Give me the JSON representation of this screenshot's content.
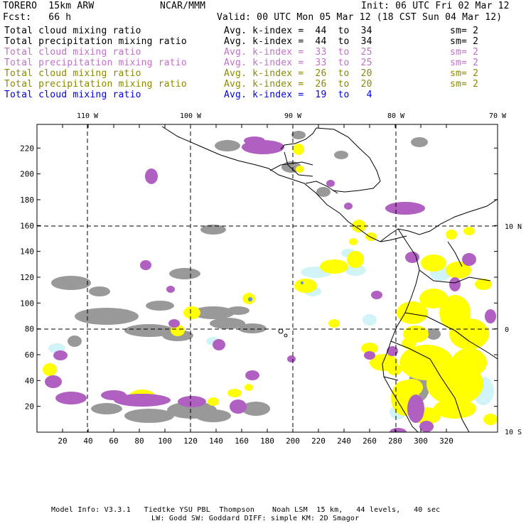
{
  "header": {
    "model": "TORERO  15km ARW",
    "org": "NCAR/MMM",
    "init": "Init: 06 UTC Fri 02 Mar 12",
    "fcst": "Fcst:   66 h",
    "valid": "Valid: 00 UTC Mon 05 Mar 12 (18 CST Sun 04 Mar 12)"
  },
  "legend": [
    {
      "field": "Total cloud mixing ratio",
      "kindex": "Avg. k-index =  44  to  34",
      "sm": "sm= 2",
      "color": "#000000"
    },
    {
      "field": "Total precipitation mixing ratio",
      "kindex": "Avg. k-index =  44  to  34",
      "sm": "sm= 2",
      "color": "#000000"
    },
    {
      "field": "Total cloud mixing ratio",
      "kindex": "Avg. k-index =  33  to  25",
      "sm": "sm= 2",
      "color": "#c070c8"
    },
    {
      "field": "Total precipitation mixing ratio",
      "kindex": "Avg. k-index =  33  to  25",
      "sm": "sm= 2",
      "color": "#c070c8"
    },
    {
      "field": "Total cloud mixing ratio",
      "kindex": "Avg. k-index =  26  to  20",
      "sm": "sm= 2",
      "color": "#8a8a00"
    },
    {
      "field": "Total precipitation mixing ratio",
      "kindex": "Avg. k-index =  26  to  20",
      "sm": "sm= 2",
      "color": "#8a8a00"
    },
    {
      "field": "Total cloud mixing ratio",
      "kindex": "Avg. k-index =  19  to   4",
      "sm": "",
      "color": "#0000e0"
    }
  ],
  "map": {
    "lon_labels": [
      "110 W",
      "100 W",
      "90 W",
      "80 W",
      "70 W"
    ],
    "lat_labels": [
      "10 N",
      "0",
      "10 S"
    ],
    "grid_x_labels": [
      "20",
      "40",
      "60",
      "80",
      "100",
      "120",
      "140",
      "160",
      "180",
      "200",
      "220",
      "240",
      "260",
      "280",
      "300",
      "320"
    ],
    "grid_y_labels": [
      "20",
      "40",
      "60",
      "80",
      "100",
      "120",
      "140",
      "160",
      "180",
      "200",
      "220"
    ],
    "colors": {
      "gray": "#999999",
      "purple": "#b060c0",
      "yellow": "#ffff00",
      "cyan": "#d0f4f8",
      "blue": "#6090e0"
    }
  },
  "footer": {
    "line1": "Model Info: V3.3.1   Tiedtke YSU PBL  Thompson    Noah LSM  15 km,   44 levels,   40 sec",
    "line2": "LW: Godd SW: Goddard DIFF: simple KM: 2D Smagor"
  }
}
